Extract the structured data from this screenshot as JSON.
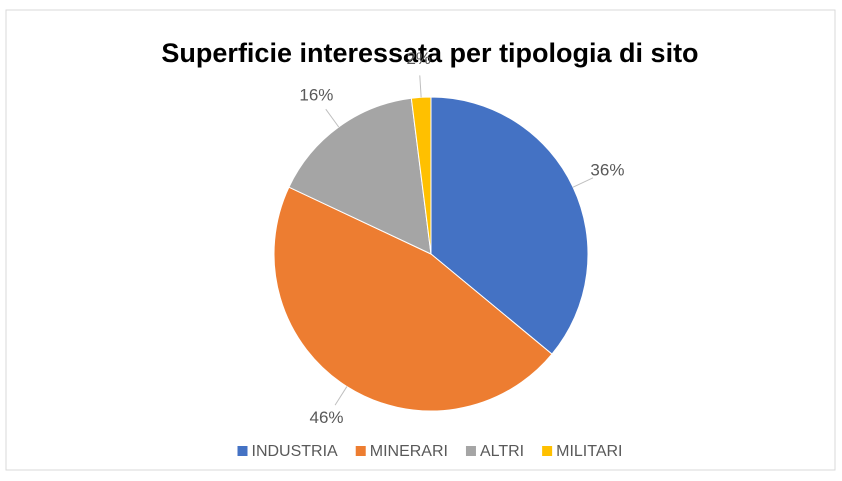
{
  "chart_data": {
    "type": "pie",
    "title": "Superficie interessata per tipologia di sito",
    "categories": [
      "INDUSTRIA",
      "MINERARI",
      "ALTRI",
      "MILITARI"
    ],
    "values": [
      36,
      46,
      16,
      2
    ],
    "value_labels": [
      "36%",
      "46%",
      "16%",
      "2%"
    ],
    "colors": [
      "#4472c4",
      "#ed7d31",
      "#a5a5a5",
      "#ffc000"
    ],
    "legend": "bottom"
  }
}
